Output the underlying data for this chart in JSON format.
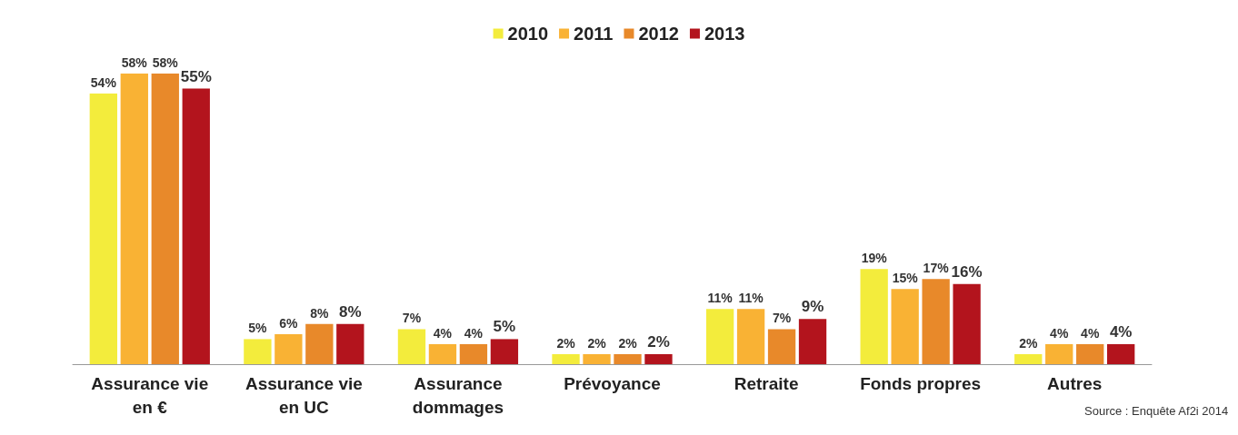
{
  "chart_data": {
    "type": "bar",
    "categories": [
      "Assurance vie\nen €",
      "Assurance vie\nen UC",
      "Assurance\ndommages",
      "Prévoyance",
      "Retraite",
      "Fonds propres",
      "Autres"
    ],
    "series": [
      {
        "name": "2010",
        "color": "#f3ec3c",
        "values": [
          54,
          5,
          7,
          2,
          11,
          19,
          2
        ],
        "value_labels": [
          "54%",
          "5%",
          "7%",
          "2%",
          "11%",
          "19%",
          "2%"
        ]
      },
      {
        "name": "2011",
        "color": "#f9b234",
        "values": [
          58,
          6,
          4,
          2,
          11,
          15,
          4
        ],
        "value_labels": [
          "58%",
          "6%",
          "4%",
          "2%",
          "11%",
          "15%",
          "4%"
        ]
      },
      {
        "name": "2012",
        "color": "#e8892a",
        "values": [
          58,
          8,
          4,
          2,
          7,
          17,
          4
        ],
        "value_labels": [
          "58%",
          "8%",
          "4%",
          "2%",
          "7%",
          "17%",
          "4%"
        ]
      },
      {
        "name": "2013",
        "color": "#b3141d",
        "values": [
          55,
          8,
          5,
          2,
          9,
          16,
          4
        ],
        "value_labels": [
          "55%",
          "8%",
          "5%",
          "2%",
          "9%",
          "16%",
          "4%"
        ]
      }
    ],
    "legend": "top",
    "annotations": [
      "Source : Enquête Af2i 2014"
    ]
  }
}
